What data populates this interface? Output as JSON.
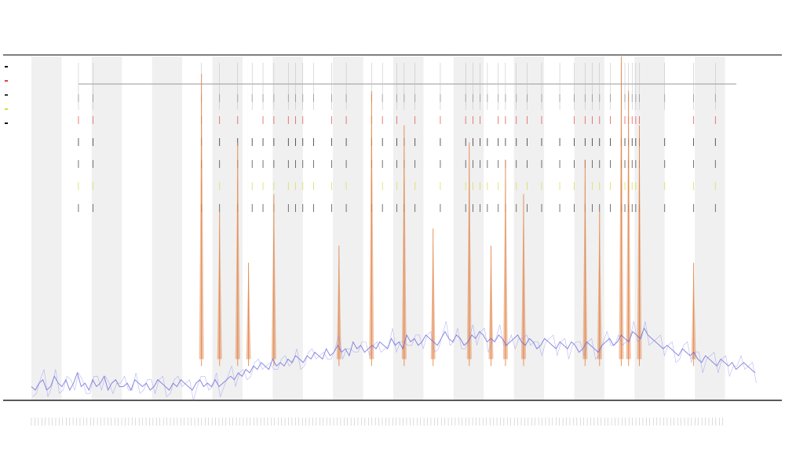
{
  "chart_data": {
    "type": "line",
    "title": "",
    "subtitle_1": "",
    "subtitle_2": "",
    "xlabel": "",
    "ylabel": "",
    "x_points": 200,
    "series": [
      {
        "name": "",
        "color": "#5a5ad8",
        "values": [
          4,
          3,
          5,
          6,
          3,
          4,
          7,
          5,
          4,
          6,
          3,
          5,
          8,
          4,
          5,
          3,
          6,
          4,
          5,
          7,
          3,
          5,
          6,
          4,
          4,
          5,
          3,
          6,
          5,
          4,
          5,
          3,
          4,
          6,
          5,
          4,
          3,
          5,
          4,
          6,
          5,
          4,
          3,
          5,
          6,
          4,
          5,
          4,
          6,
          4,
          5,
          6,
          7,
          6,
          8,
          7,
          9,
          8,
          10,
          9,
          11,
          10,
          9,
          12,
          10,
          11,
          10,
          12,
          11,
          13,
          12,
          11,
          13,
          12,
          14,
          13,
          12,
          15,
          13,
          14,
          16,
          14,
          15,
          13,
          17,
          15,
          16,
          14,
          15,
          16,
          15,
          17,
          16,
          15,
          18,
          16,
          17,
          15,
          19,
          17,
          18,
          16,
          17,
          19,
          18,
          17,
          16,
          18,
          20,
          18,
          17,
          19,
          18,
          16,
          17,
          19,
          18,
          20,
          19,
          17,
          18,
          17,
          19,
          18,
          16,
          17,
          18,
          19,
          17,
          16,
          18,
          17,
          15,
          16,
          18,
          17,
          16,
          15,
          17,
          16,
          15,
          17,
          16,
          14,
          15,
          17,
          16,
          15,
          14,
          16,
          17,
          18,
          16,
          17,
          19,
          18,
          17,
          20,
          19,
          18,
          21,
          19,
          18,
          17,
          16,
          15,
          16,
          15,
          14,
          13,
          15,
          14,
          13,
          14,
          12,
          11,
          13,
          12,
          11,
          10,
          12,
          11,
          10,
          11,
          9,
          10,
          11,
          10,
          9,
          8
        ]
      },
      {
        "name": "",
        "color": "#e07b39",
        "spikes": [
          {
            "x": 47,
            "v": 95
          },
          {
            "x": 52,
            "v": 55
          },
          {
            "x": 57,
            "v": 75
          },
          {
            "x": 60,
            "v": 40
          },
          {
            "x": 67,
            "v": 60
          },
          {
            "x": 85,
            "v": 45
          },
          {
            "x": 94,
            "v": 90
          },
          {
            "x": 103,
            "v": 80
          },
          {
            "x": 111,
            "v": 50
          },
          {
            "x": 121,
            "v": 75
          },
          {
            "x": 127,
            "v": 45
          },
          {
            "x": 131,
            "v": 70
          },
          {
            "x": 136,
            "v": 60
          },
          {
            "x": 153,
            "v": 70
          },
          {
            "x": 157,
            "v": 55
          },
          {
            "x": 163,
            "v": 100
          },
          {
            "x": 165,
            "v": 90
          },
          {
            "x": 168,
            "v": 80
          },
          {
            "x": 183,
            "v": 40
          }
        ]
      }
    ],
    "events_x": [
      13,
      17,
      47,
      52,
      57,
      61,
      64,
      67,
      71,
      73,
      75,
      78,
      83,
      87,
      94,
      97,
      101,
      103,
      106,
      113,
      120,
      122,
      124,
      126,
      129,
      131,
      134,
      137,
      141,
      146,
      150,
      153,
      155,
      157,
      160,
      163,
      164,
      165,
      166,
      167,
      168,
      175,
      183,
      189
    ],
    "event_rows": [
      {
        "name": "",
        "color": "#888888",
        "offset": 0.0
      },
      {
        "name": "",
        "color": "#e04040",
        "offset": 0.1
      },
      {
        "name": "",
        "color": "#111111",
        "offset": 0.2
      },
      {
        "name": "",
        "color": "#333333",
        "offset": 0.3
      },
      {
        "name": "",
        "color": "#d8d840",
        "offset": 0.4
      },
      {
        "name": "",
        "color": "#333333",
        "offset": 0.5
      }
    ],
    "legend_colors": [
      "#111111",
      "#e04040",
      "#333333",
      "#d8d840",
      "#111111"
    ],
    "shaded_bands": 12,
    "xlim": [
      0,
      200
    ],
    "ylim": [
      0,
      100
    ],
    "grid": false,
    "legend_position": "top-left"
  }
}
